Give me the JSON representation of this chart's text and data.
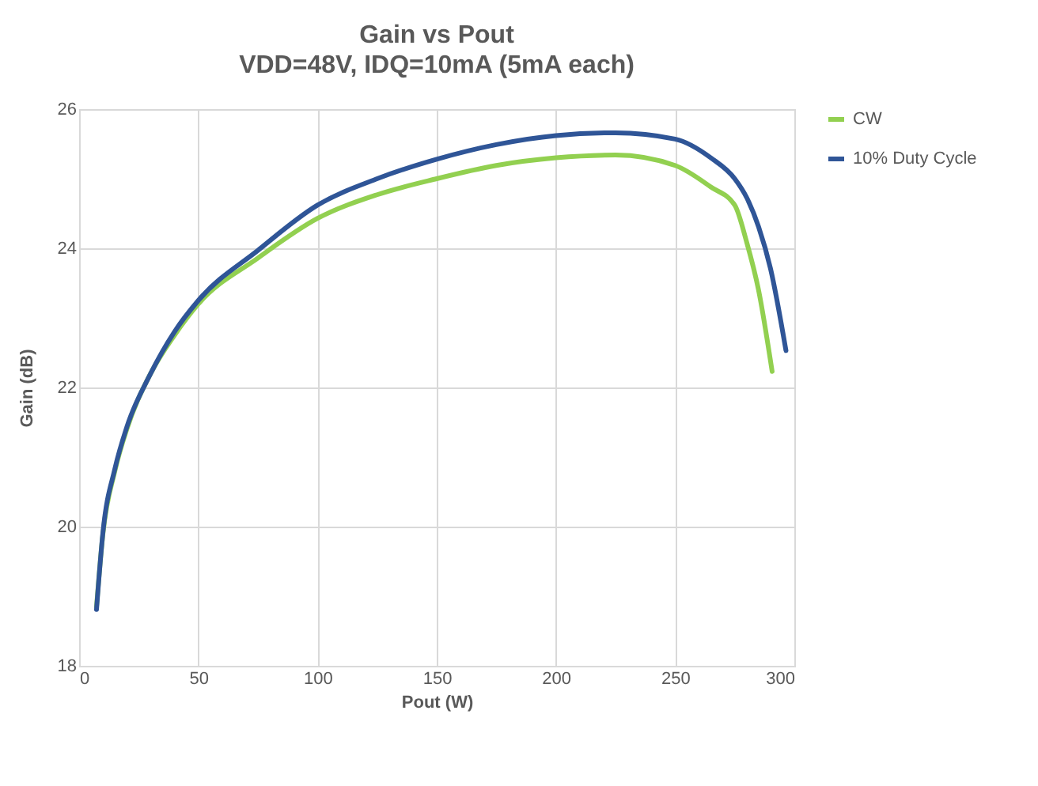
{
  "chart_data": {
    "type": "line",
    "title": "Gain vs Pout",
    "subtitle": "VDD=48V, IDQ=10mA (5mA each)",
    "xlabel": "Pout (W)",
    "ylabel": "Gain (dB)",
    "xlim": [
      0,
      300
    ],
    "xticks": [
      0,
      50,
      100,
      150,
      200,
      250,
      300
    ],
    "ylim": [
      18,
      26
    ],
    "yticks": [
      18,
      20,
      22,
      24,
      26
    ],
    "grid": true,
    "legend": "right",
    "marker": "none",
    "line_style": "solid",
    "series": [
      {
        "name": "CW",
        "color": "#92d050",
        "x": [
          7.3,
          10,
          15,
          20,
          30,
          40,
          50,
          75,
          100,
          125,
          150,
          175,
          200,
          225,
          250,
          265,
          275,
          280,
          285,
          290.7
        ],
        "values": [
          18.85,
          19.9,
          20.8,
          21.4,
          22.2,
          22.75,
          23.2,
          23.86,
          24.43,
          24.77,
          25.0,
          25.19,
          25.3,
          25.34,
          25.19,
          24.88,
          24.62,
          24.09,
          23.4,
          22.23
        ]
      },
      {
        "name": "10% Duty Cycle",
        "color": "#2f5597",
        "x": [
          7.3,
          10,
          15,
          20,
          30,
          40,
          50,
          75,
          100,
          125,
          150,
          175,
          200,
          225,
          250,
          265,
          275,
          280,
          285,
          290,
          296.5
        ],
        "values": [
          18.81,
          19.92,
          20.83,
          21.43,
          22.2,
          22.8,
          23.25,
          23.97,
          24.62,
          25.0,
          25.28,
          25.49,
          25.62,
          25.66,
          25.57,
          25.3,
          25.0,
          24.73,
          24.31,
          23.71,
          22.53
        ]
      }
    ]
  }
}
